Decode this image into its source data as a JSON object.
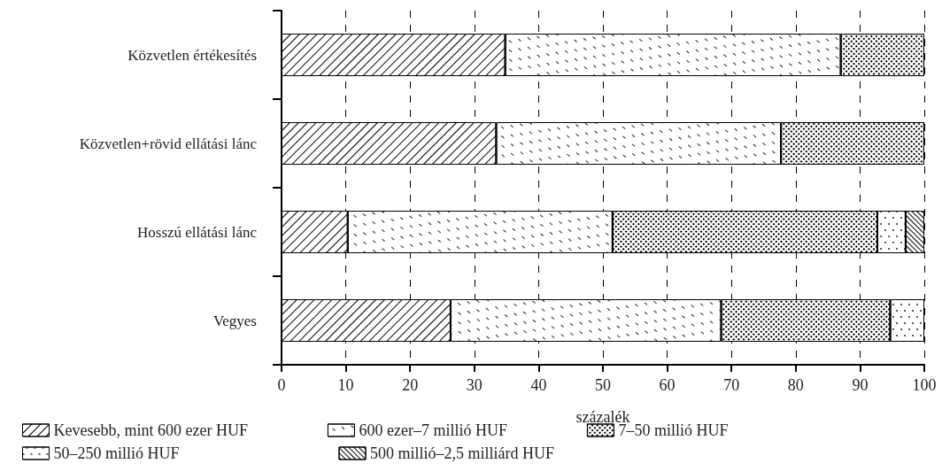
{
  "chart_data": {
    "type": "bar",
    "orientation": "horizontal",
    "stacked": true,
    "xlabel": "százalék",
    "categories": [
      "Közvetlen értékesítés",
      "Közvetlen+rövid ellátási lánc",
      "Hosszú ellátási lánc",
      "Vegyes"
    ],
    "series": [
      {
        "name": "Kevesebb, mint 600 ezer HUF",
        "color": "#ffffff",
        "values": [
          34.8,
          33.4,
          10.3,
          26.3
        ]
      },
      {
        "name": "600 ezer–7 millió HUF",
        "color": "#ffffff",
        "values": [
          52.2,
          44.3,
          41.2,
          42.1
        ]
      },
      {
        "name": "7–50 millió HUF",
        "color": "#ffffff",
        "values": [
          13.0,
          22.3,
          41.2,
          26.3
        ]
      },
      {
        "name": "50–250 millió HUF",
        "color": "#ffffff",
        "values": [
          null,
          null,
          4.4,
          5.3
        ]
      },
      {
        "name": "500 millió–2,5 milliárd HUF",
        "color": "#ffffff",
        "values": [
          null,
          null,
          2.9,
          null
        ]
      }
    ],
    "xlim": [
      0,
      100
    ],
    "xticks": [
      0,
      10,
      20,
      30,
      40,
      50,
      60,
      70,
      80,
      90,
      100
    ],
    "grid": "x",
    "legend": "bottom"
  }
}
